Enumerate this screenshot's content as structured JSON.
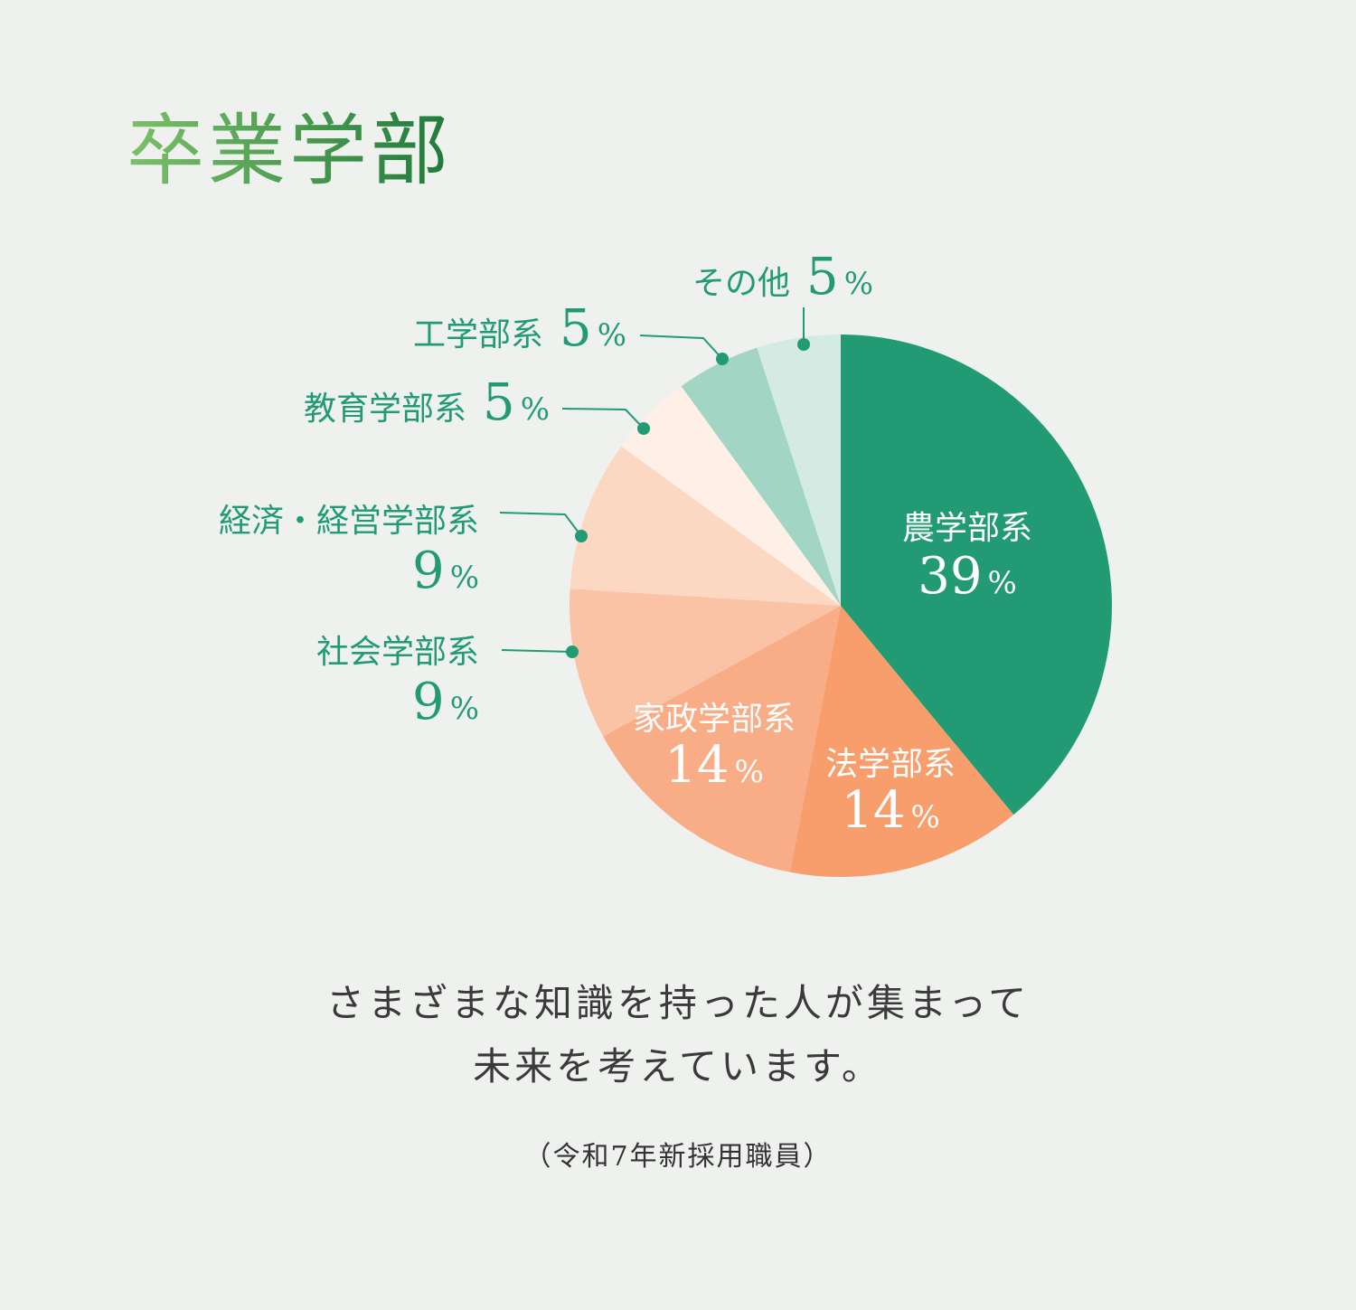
{
  "title": "卒業学部",
  "chart_data": {
    "type": "pie",
    "start": "top",
    "direction": "clockwise",
    "slices": [
      {
        "category": "農学部系",
        "value": 39,
        "label": "39",
        "unit": "%",
        "color": "#229b75"
      },
      {
        "category": "法学部系",
        "value": 14,
        "label": "14",
        "unit": "%",
        "color": "#f89e6d"
      },
      {
        "category": "家政学部系",
        "value": 14,
        "label": "14",
        "unit": "%",
        "color": "#f9ad87"
      },
      {
        "category": "社会学部系",
        "value": 9,
        "label": "9",
        "unit": "%",
        "color": "#fac3a5"
      },
      {
        "category": "経済・経営学部系",
        "value": 9,
        "label": "9",
        "unit": "%",
        "color": "#fcd8c3"
      },
      {
        "category": "教育学部系",
        "value": 5,
        "label": "5",
        "unit": "%",
        "color": "#fef0e7"
      },
      {
        "category": "工学部系",
        "value": 5,
        "label": "5",
        "unit": "%",
        "color": "#a2d5c3"
      },
      {
        "category": "その他",
        "value": 5,
        "label": "5",
        "unit": "%",
        "color": "#d3ebe2"
      }
    ]
  },
  "message": [
    "さまざまな知識を持った人が集まって",
    "未来を考えています。"
  ],
  "note": "（令和7年新採用職員）",
  "colors": {
    "label_green": "#229b75",
    "label_white": "#ffffff",
    "text": "#3a3a3a"
  }
}
